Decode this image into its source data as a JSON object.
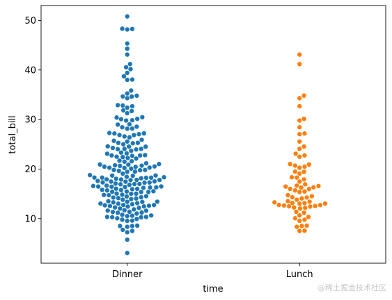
{
  "chart_data": {
    "type": "scatter",
    "subtype": "swarm",
    "title": "",
    "xlabel": "time",
    "ylabel": "total_bill",
    "categories": [
      "Dinner",
      "Lunch"
    ],
    "ylim": [
      1,
      53
    ],
    "yticks": [
      10,
      20,
      30,
      40,
      50
    ],
    "grid": false,
    "series": [
      {
        "category": "Dinner",
        "color": "#1f77b4",
        "values": [
          3.07,
          5.75,
          7.25,
          7.51,
          7.74,
          8.35,
          8.51,
          8.52,
          8.58,
          9.55,
          9.6,
          9.78,
          9.94,
          10.07,
          10.27,
          10.29,
          10.33,
          10.34,
          10.51,
          10.59,
          10.63,
          10.77,
          11.02,
          11.17,
          11.24,
          11.35,
          11.38,
          11.59,
          11.61,
          11.69,
          11.87,
          12.03,
          12.16,
          12.26,
          12.43,
          12.46,
          12.54,
          12.6,
          12.69,
          12.74,
          12.76,
          12.9,
          13.0,
          13.03,
          13.13,
          13.28,
          13.37,
          13.39,
          13.42,
          13.51,
          13.81,
          13.94,
          14.07,
          14.15,
          14.26,
          14.31,
          14.48,
          14.52,
          14.73,
          14.78,
          14.83,
          15.01,
          15.04,
          15.06,
          15.36,
          15.38,
          15.42,
          15.48,
          15.53,
          15.69,
          15.77,
          15.81,
          15.95,
          16.0,
          16.04,
          16.21,
          16.29,
          16.32,
          16.4,
          16.45,
          16.47,
          16.49,
          16.58,
          16.66,
          16.82,
          16.93,
          16.97,
          16.99,
          17.07,
          17.26,
          17.29,
          17.31,
          17.46,
          17.47,
          17.51,
          17.59,
          17.78,
          17.81,
          17.82,
          17.89,
          17.92,
          18.04,
          18.15,
          18.24,
          18.26,
          18.28,
          18.29,
          18.35,
          18.43,
          18.64,
          18.69,
          18.71,
          18.78,
          19.08,
          19.44,
          19.49,
          19.65,
          19.77,
          19.81,
          19.82,
          20.08,
          20.23,
          20.27,
          20.29,
          20.45,
          20.49,
          20.53,
          20.65,
          20.69,
          20.76,
          20.9,
          20.92,
          21.01,
          21.16,
          21.5,
          21.58,
          21.7,
          22.12,
          22.23,
          22.42,
          22.49,
          22.67,
          22.75,
          22.76,
          22.82,
          23.1,
          23.17,
          23.33,
          23.68,
          23.95,
          24.01,
          24.06,
          24.08,
          24.27,
          24.52,
          24.55,
          24.59,
          25.0,
          25.21,
          25.28,
          25.29,
          25.56,
          25.71,
          25.89,
          26.41,
          26.59,
          26.86,
          26.88,
          27.05,
          27.18,
          27.2,
          27.28,
          28.15,
          28.17,
          28.44,
          28.55,
          28.97,
          29.03,
          29.8,
          29.85,
          30.06,
          30.14,
          30.4,
          30.46,
          31.27,
          31.71,
          31.85,
          32.4,
          32.68,
          32.83,
          32.9,
          34.3,
          34.63,
          34.65,
          34.81,
          35.26,
          35.83,
          38.01,
          38.07,
          38.73,
          39.42,
          40.17,
          40.55,
          41.19,
          43.11,
          44.3,
          45.35,
          48.17,
          48.27,
          48.33,
          50.81
        ]
      },
      {
        "category": "Lunch",
        "color": "#ff7f0e",
        "values": [
          7.51,
          7.56,
          8.35,
          8.52,
          8.58,
          9.55,
          9.78,
          10.07,
          10.33,
          10.65,
          11.17,
          11.38,
          12.03,
          12.16,
          12.26,
          12.43,
          12.48,
          12.54,
          12.66,
          12.74,
          12.76,
          13.0,
          13.03,
          13.13,
          13.16,
          13.28,
          13.42,
          13.51,
          13.81,
          14.07,
          14.26,
          14.31,
          14.52,
          14.73,
          15.36,
          15.48,
          15.69,
          15.98,
          16.0,
          16.27,
          16.31,
          16.47,
          16.58,
          16.66,
          16.93,
          17.47,
          17.92,
          18.29,
          18.35,
          19.08,
          19.44,
          19.49,
          20.27,
          20.49,
          20.69,
          20.92,
          21.01,
          22.49,
          22.76,
          23.1,
          24.08,
          24.55,
          25.56,
          27.05,
          27.18,
          28.44,
          29.8,
          30.14,
          32.68,
          34.3,
          34.83,
          41.19,
          43.11
        ]
      }
    ]
  },
  "watermark": "@稀土掘金技术社区"
}
